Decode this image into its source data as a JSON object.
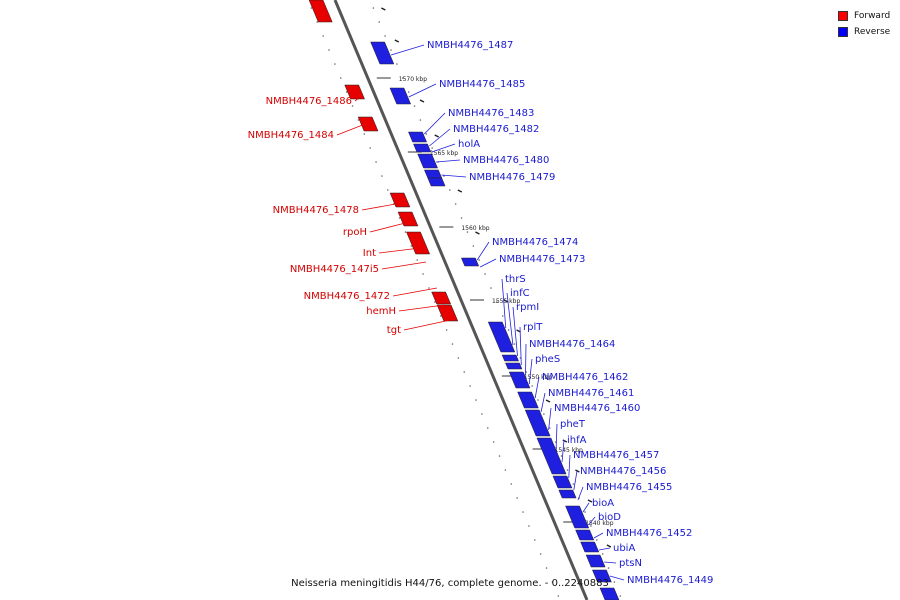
{
  "legend": {
    "items": [
      {
        "label": "Forward",
        "color": "#ff0000"
      },
      {
        "label": "Reverse",
        "color": "#0000ff"
      }
    ]
  },
  "caption": "Neisseria meningitidis H44/76, complete genome. - 0..2240883",
  "colors": {
    "forward": "#e60000",
    "reverse": "#1f1fe0",
    "axis": "#555555"
  },
  "scale_ticks": [
    "1570 kbp",
    "1565 kbp",
    "1560 kbp",
    "1555 kbp",
    "1550 kbp",
    "1545 kbp",
    "1540 kbp"
  ],
  "forward_genes": [
    "NMBH4476_1486",
    "NMBH4476_1484",
    "NMBH4476_1478",
    "rpoH",
    "Int",
    "NMBH4476_147i5",
    "NMBH4476_1472",
    "hemH",
    "tgt"
  ],
  "reverse_genes": [
    "NMBH4476_1487",
    "NMBH4476_1485",
    "NMBH4476_1483",
    "NMBH4476_1482",
    "holA",
    "NMBH4476_1480",
    "NMBH4476_1479",
    "NMBH4476_1474",
    "NMBH4476_1473",
    "thrS",
    "infC",
    "rpmI",
    "rplT",
    "NMBH4476_1464",
    "pheS",
    "NMBH4476_1462",
    "NMBH4476_1461",
    "NMBH4476_1460",
    "pheT",
    "ihfA",
    "NMBH4476_1457",
    "NMBH4476_1456",
    "NMBH4476_1455",
    "bioA",
    "bioD",
    "NMBH4476_1452",
    "ubiA",
    "ptsN",
    "NMBH4476_1449"
  ]
}
